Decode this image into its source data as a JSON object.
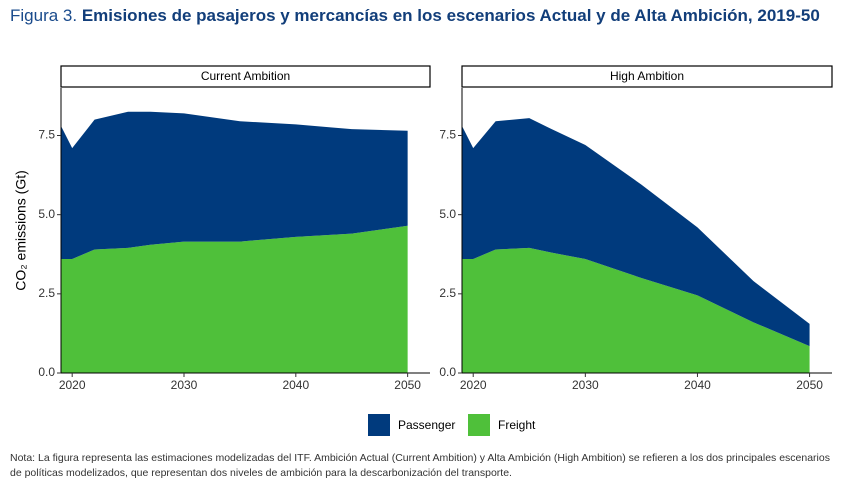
{
  "figure_label": "Figura 3.",
  "title": "Emisiones de pasajeros y mercancías en los escenarios Actual y de Alta Ambición, 2019-50",
  "note": "Nota: La figura representa las estimaciones modelizadas del ITF. Ambición Actual (Current Ambition) y Alta Ambición (High Ambition) se refieren a los dos principales escenarios de políticas modelizados, que representan dos niveles de ambición para la descarbonización del transporte.",
  "chart_data": [
    {
      "type": "area",
      "title": "Current Ambition",
      "ylabel": "CO₂ emissions (Gt)",
      "x": [
        2019,
        2020,
        2022,
        2025,
        2027,
        2030,
        2035,
        2040,
        2045,
        2050
      ],
      "series": [
        {
          "name": "Passenger",
          "color": "#003a7d",
          "values": [
            4.2,
            3.5,
            4.1,
            4.3,
            4.2,
            4.05,
            3.8,
            3.55,
            3.3,
            3.0
          ]
        },
        {
          "name": "Freight",
          "color": "#4fc03a",
          "values": [
            3.6,
            3.6,
            3.9,
            3.95,
            4.05,
            4.15,
            4.15,
            4.3,
            4.4,
            4.65
          ]
        }
      ],
      "stacked": true,
      "xlim": [
        2019,
        2052
      ],
      "ylim": [
        0,
        9
      ],
      "xticks": [
        2020,
        2030,
        2040,
        2050
      ],
      "yticks": [
        {
          "value": 0,
          "label": "0.0"
        },
        2.5,
        {
          "value": 5,
          "label": "5.0"
        },
        7.5
      ]
    },
    {
      "type": "area",
      "title": "High Ambition",
      "x": [
        2019,
        2020,
        2022,
        2025,
        2027,
        2030,
        2035,
        2040,
        2045,
        2050
      ],
      "series": [
        {
          "name": "Passenger",
          "color": "#003a7d",
          "values": [
            4.2,
            3.5,
            4.05,
            4.1,
            3.9,
            3.6,
            2.95,
            2.15,
            1.3,
            0.7
          ]
        },
        {
          "name": "Freight",
          "color": "#4fc03a",
          "values": [
            3.6,
            3.6,
            3.9,
            3.95,
            3.8,
            3.6,
            3.0,
            2.45,
            1.6,
            0.85
          ]
        }
      ],
      "stacked": true,
      "xlim": [
        2019,
        2052
      ],
      "ylim": [
        0,
        9
      ],
      "xticks": [
        2020,
        2030,
        2040,
        2050
      ],
      "yticks": [
        {
          "value": 0,
          "label": "0.0"
        },
        2.5,
        {
          "value": 5,
          "label": "5.0"
        },
        7.5
      ]
    }
  ]
}
